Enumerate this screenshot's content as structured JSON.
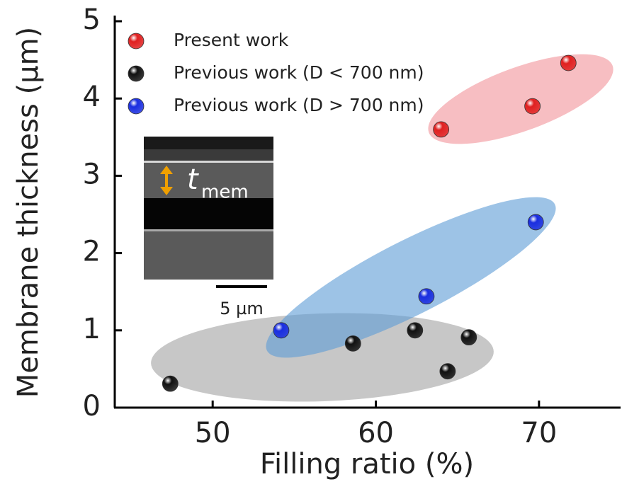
{
  "chart_data": {
    "type": "scatter",
    "x_label": "Filling ratio (%)",
    "y_label": "Membrane thickness (µm)",
    "xlim": [
      44,
      75
    ],
    "ylim": [
      0,
      5
    ],
    "xticks": [
      50,
      60,
      70
    ],
    "yticks": [
      0,
      1,
      2,
      3,
      4,
      5
    ],
    "legend": "upper left",
    "series": [
      {
        "name": "Present work",
        "color": "#e02020",
        "x": [
          64.0,
          69.6,
          71.8
        ],
        "values": [
          3.6,
          3.9,
          4.46
        ]
      },
      {
        "name": "Previous work (D < 700 nm)",
        "color": "#111111",
        "x": [
          47.4,
          58.6,
          62.4,
          64.4,
          65.7
        ],
        "values": [
          0.31,
          0.83,
          1.0,
          0.47,
          0.91
        ]
      },
      {
        "name": "Previous work (D > 700 nm)",
        "color": "#1a2ee0",
        "x": [
          54.2,
          63.1,
          69.8
        ],
        "values": [
          1.0,
          1.44,
          2.4
        ]
      }
    ],
    "inset": {
      "symbol": "t",
      "subscript": "mem",
      "scale_bar": "5 µm"
    }
  }
}
